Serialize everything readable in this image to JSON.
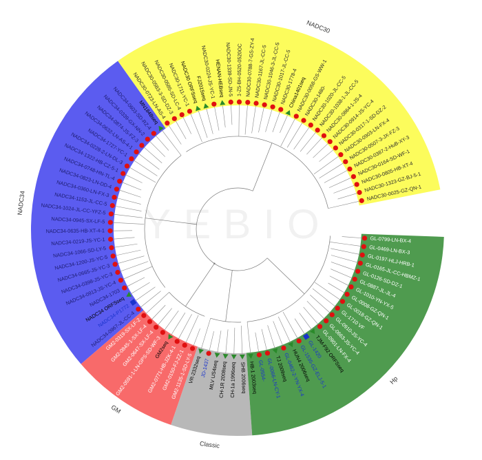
{
  "watermark": "YEBIO",
  "clades": [
    {
      "name": "NADC30",
      "color": "#fcfc5c",
      "text_color": "#2a2a2a",
      "leaves": [
        {
          "label": "NADC30-0025-GZ-QN-1",
          "marker": "circle"
        },
        {
          "label": "NADC30-1323-GZ-BJ-5-1",
          "marker": "circle"
        },
        {
          "label": "NADC30-0805-HB-XT-4",
          "marker": "circle"
        },
        {
          "label": "NADC30-0164-SD-WF-1",
          "marker": "circle"
        },
        {
          "label": "NADC30-0387-2-HuB-XY-3",
          "marker": "circle"
        },
        {
          "label": "NADC30-0507-3-JX-FZ-3",
          "marker": "circle"
        },
        {
          "label": "NADC30-0903-LN-FX-4",
          "marker": "circle"
        },
        {
          "label": "NADC30-0317-1-SD-DZ-2",
          "marker": "circle"
        },
        {
          "label": "NADC30-0914-JS-YC-4",
          "marker": "circle"
        },
        {
          "label": "NADC30-0864-1-JS-4",
          "marker": "circle"
        },
        {
          "label": "NADC30-1038-1-JL-CC-5",
          "marker": "circle"
        },
        {
          "label": "NADC30-1020-JL-CC-5",
          "marker": "circle"
        },
        {
          "label": "NADC30-1480-",
          "marker": "circle"
        },
        {
          "label": "NADC30-0058-GS-WW-1",
          "marker": "circle"
        },
        {
          "label": "China1401seq",
          "marker": "triangle",
          "text_color": "#000000"
        },
        {
          "label": "NADC30-1778-4",
          "marker": "circle"
        },
        {
          "label": "NADC30-1017-JL-CC-5",
          "marker": "circle"
        },
        {
          "label": "NADC30-1046-3-JL-CC-5",
          "marker": "circle"
        },
        {
          "label": "NADC30-1167-JL-CC-5",
          "marker": "circle"
        },
        {
          "label": "NADC30-0788-7-GS-ZY-4",
          "marker": "circle"
        },
        {
          "label": "1-Z5-BH-0520-0520OC",
          "marker": "circle"
        },
        {
          "label": "NADC30-1339-SD-JN-5",
          "marker": "circle"
        },
        {
          "label": "HENAN-HEBseq",
          "marker": "triangle",
          "text_color": "#000000"
        },
        {
          "label": "NADC30-0224-JS-YC-1",
          "marker": "circle"
        },
        {
          "label": "FJ2015seq",
          "marker": "triangle",
          "text_color": "#000000"
        },
        {
          "label": "NADC30 ORFSseq",
          "marker": "triangle",
          "text_color": "#000000"
        },
        {
          "label": "NADC30-1711-YC-1",
          "marker": "circle"
        },
        {
          "label": "NADC30-0585-SD-LC-4",
          "marker": "circle"
        },
        {
          "label": "NADC30-0583-3-SD-DZ-3",
          "marker": "circle"
        },
        {
          "label": "NADC30-0723-LN-AS-4",
          "marker": "circle"
        }
      ]
    },
    {
      "name": "NADC34",
      "color": "#5b5cf0",
      "text_color": "#1c1c70",
      "leaves": [
        {
          "label": "MN184Bseq",
          "marker": "triangle",
          "text_color": "#000000"
        },
        {
          "label": "NADC34-0603-SD-RZ-4",
          "marker": "circle"
        },
        {
          "label": "NADC34-0339-GX-NN-2",
          "marker": "circle"
        },
        {
          "label": "NADC34-0874-JS-FZ-3",
          "marker": "circle"
        },
        {
          "label": "NADC34-0632-LN-AS-4-1",
          "marker": "circle"
        },
        {
          "label": "NADC34-1727-YC-1",
          "marker": "circle"
        },
        {
          "label": "NADC34-0228-2-LN-DL-3",
          "marker": "circle"
        },
        {
          "label": "NADC34-1322-HB-CZ-5-1",
          "marker": "circle"
        },
        {
          "label": "NADC34-0748-HN-TL-4",
          "marker": "circle"
        },
        {
          "label": "NADC34-0823-LN-DD-4",
          "marker": "circle"
        },
        {
          "label": "NADC34-0360-LN-FX-3",
          "marker": "circle"
        },
        {
          "label": "NADC34-1153-JL-CC-5",
          "marker": "circle"
        },
        {
          "label": "NADC34-1024-JL-CC-YFZ-5",
          "marker": "circle"
        },
        {
          "label": "NADC34-0945-SX-LF-5",
          "marker": "circle"
        },
        {
          "label": "NADC34-0635-HB-XT-4-1",
          "marker": "circle"
        },
        {
          "label": "NADC34-0219-JS-YC-1",
          "marker": "circle"
        },
        {
          "label": "NADC34-1066-SD-LY-5",
          "marker": "circle"
        },
        {
          "label": "NADC34-1200-JS-YC-5",
          "marker": "circle"
        },
        {
          "label": "NADC34-0665-JS-YC-3",
          "marker": "circle"
        },
        {
          "label": "NADC34-0398-JS-YC-3",
          "marker": "circle"
        },
        {
          "label": "NADC34-0913-JS-YC-4",
          "marker": "circle"
        },
        {
          "label": "NADC34-1703",
          "marker": "circle"
        },
        {
          "label": "NADC34 ORFSseq",
          "marker": "triangle",
          "text_color": "#000000"
        },
        {
          "label": "NADC34-P1772",
          "marker": "square",
          "text_color": "#1a33cc"
        },
        {
          "label": "NADC34-0967-JL-CC-4",
          "marker": "circle"
        }
      ]
    },
    {
      "name": "GM",
      "color": "#f86a6a",
      "text_color": "#ffffff",
      "leaves": [
        {
          "label": "GM2-0319-SX-LF-2",
          "marker": "circle"
        },
        {
          "label": "GM2-0845-1-SX-LF-4",
          "marker": "circle"
        },
        {
          "label": "GM2-0647-SX-LF-4",
          "marker": "circle"
        },
        {
          "label": "GM2-0591-1-LN-GPS-SD-WF-3",
          "marker": "circle"
        },
        {
          "label": "GM2seq",
          "marker": "triangle",
          "text_color": "#000000"
        },
        {
          "label": "GM2-0771-HB-JZK-4-1",
          "marker": "circle"
        },
        {
          "label": "GM2-0150-FJ-ZZ-1",
          "marker": "circle"
        },
        {
          "label": "GM2-1135-1-SD-LY-5",
          "marker": "circle"
        }
      ]
    },
    {
      "name": "Classic",
      "color": "#b8b8b8",
      "text_color": "#000000",
      "leaves": [
        {
          "label": "VR-2332seq",
          "marker": "triangle"
        },
        {
          "label": "JD-1437",
          "marker": "circle",
          "text_color": "#1a33cc"
        },
        {
          "label": "MLV US4seq",
          "marker": "triangle"
        },
        {
          "label": "CH-1R 2008seq",
          "marker": "triangle"
        },
        {
          "label": "CH-1a 1996seq",
          "marker": "triangle"
        },
        {
          "label": "SHB 2006seq",
          "marker": "triangle"
        }
      ]
    },
    {
      "name": "Hp",
      "color": "#4f9b4f",
      "text_color": "#ffffff",
      "leaves": [
        {
          "label": "HB-1 2003seq",
          "marker": "triangle",
          "text_color": "#000000"
        },
        {
          "label": "GL-0554-",
          "marker": "circle",
          "text_color": "#1a33cc"
        },
        {
          "label": "GL-0066-LN-CY-1",
          "marker": "circle",
          "text_color": "#1a33cc"
        },
        {
          "label": "TJ 2009seq",
          "marker": "triangle",
          "text_color": "#000000"
        },
        {
          "label": "GL-0462-2-YN-YX-4",
          "marker": "circle",
          "text_color": "#1a33cc"
        },
        {
          "label": "HUN4 2006seq",
          "marker": "triangle",
          "text_color": "#000000"
        },
        {
          "label": "GL-1535-GZ-ELJ-5-1",
          "marker": "circle",
          "text_color": "#1a33cc"
        },
        {
          "label": "GL-1420",
          "marker": "square",
          "text_color": "#1a33cc"
        },
        {
          "label": "TJM-F92 ORFSseq",
          "marker": "triangle",
          "text_color": "#000000"
        },
        {
          "label": "GL-0901-LN-FX-4",
          "marker": "circle"
        },
        {
          "label": "GL-0663-JS-YC-4",
          "marker": "circle"
        },
        {
          "label": "GL-0910-JS-YC-4",
          "marker": "circle"
        },
        {
          "label": "GL-1710 VF",
          "marker": "circle"
        },
        {
          "label": "GL-0018-GZ-QN-1",
          "marker": "circle"
        },
        {
          "label": "GL-0008-GZ-QN-1",
          "marker": "circle"
        },
        {
          "label": "GL-1010-YN-YX-5",
          "marker": "circle"
        },
        {
          "label": "GL-0887-JL-JL-4",
          "marker": "circle"
        },
        {
          "label": "GL-0126-SD-DZ-1",
          "marker": "circle"
        },
        {
          "label": "GL-0165-JL-CC-HBMZ-1",
          "marker": "circle"
        },
        {
          "label": "GL-0197-HLJ-HRB-1",
          "marker": "circle"
        },
        {
          "label": "GL-0469-LN-BX-3",
          "marker": "circle"
        },
        {
          "label": "GL-0799-LN-BX-4",
          "marker": "circle"
        }
      ]
    }
  ]
}
